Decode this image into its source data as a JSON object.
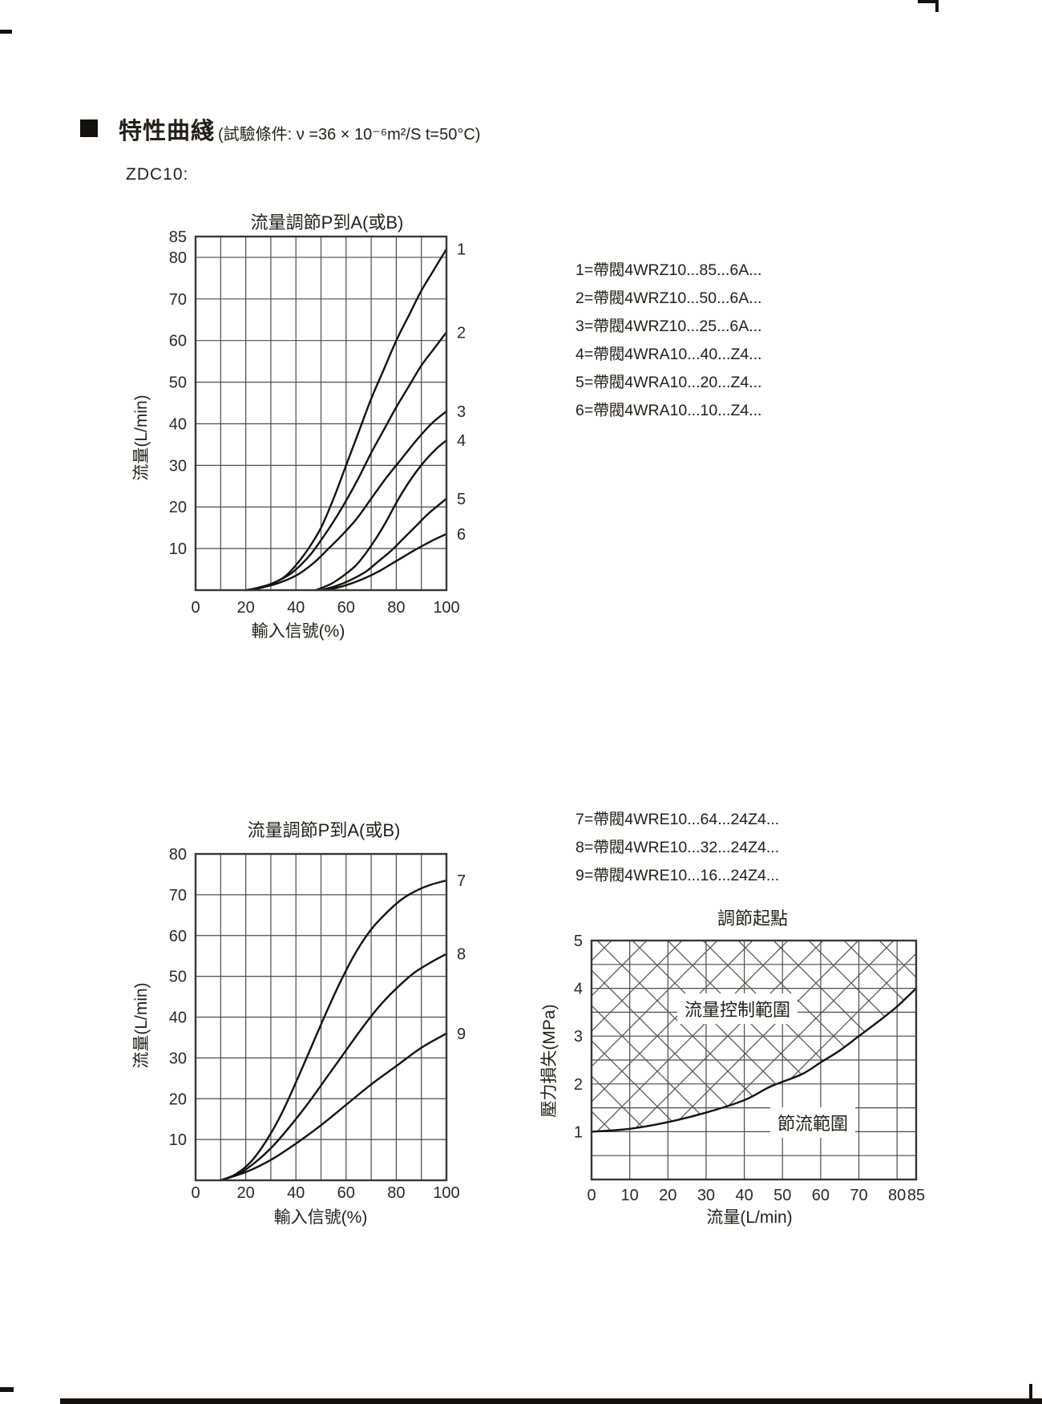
{
  "page": {
    "header": {
      "title": "特性曲綫",
      "condition": "(試驗條件: ν =36 × 10⁻⁶m²/S  t=50°C)",
      "model": "ZDC10:"
    }
  },
  "chart_data": [
    {
      "type": "line",
      "title": "流量調節P到A(或B)",
      "xlabel": "輸入信號(%)",
      "ylabel": "流量(L/min)",
      "xlim": [
        0,
        100
      ],
      "ylim": [
        0,
        85
      ],
      "x_ticks": [
        0,
        20,
        40,
        60,
        80,
        100
      ],
      "y_ticks": [
        10,
        20,
        30,
        40,
        50,
        60,
        70,
        80,
        85
      ],
      "x_grid": [
        0,
        10,
        20,
        30,
        40,
        50,
        60,
        70,
        80,
        90,
        100
      ],
      "y_grid": [
        0,
        10,
        20,
        30,
        40,
        50,
        60,
        70,
        80,
        85
      ],
      "grid": true,
      "curve_labels": true,
      "legend_position": "right-text-block",
      "legend": [
        "1=帶閥4WRZ10...85...6A...",
        "2=帶閥4WRZ10...50...6A...",
        "3=帶閥4WRZ10...25...6A...",
        "4=帶閥4WRA10...40...Z4...",
        "5=帶閥4WRA10...20...Z4...",
        "6=帶閥4WRA10...10...Z4..."
      ],
      "series": [
        {
          "name": "1",
          "points": [
            [
              20,
              0
            ],
            [
              28,
              1
            ],
            [
              35,
              3
            ],
            [
              40,
              6
            ],
            [
              45,
              10
            ],
            [
              50,
              15
            ],
            [
              55,
              22
            ],
            [
              60,
              30
            ],
            [
              65,
              38
            ],
            [
              70,
              46
            ],
            [
              75,
              53
            ],
            [
              80,
              60
            ],
            [
              85,
              66
            ],
            [
              90,
              72
            ],
            [
              95,
              77
            ],
            [
              100,
              82
            ]
          ]
        },
        {
          "name": "2",
          "points": [
            [
              21,
              0
            ],
            [
              30,
              1.5
            ],
            [
              38,
              4
            ],
            [
              45,
              8
            ],
            [
              50,
              12
            ],
            [
              55,
              16.5
            ],
            [
              60,
              21.5
            ],
            [
              65,
              27
            ],
            [
              70,
              33
            ],
            [
              75,
              38.5
            ],
            [
              80,
              44
            ],
            [
              85,
              49
            ],
            [
              90,
              54
            ],
            [
              95,
              58
            ],
            [
              100,
              62
            ]
          ]
        },
        {
          "name": "3",
          "points": [
            [
              22,
              0
            ],
            [
              32,
              1.5
            ],
            [
              40,
              3.5
            ],
            [
              47,
              6.5
            ],
            [
              53,
              10
            ],
            [
              58,
              13
            ],
            [
              64,
              17
            ],
            [
              70,
              22
            ],
            [
              76,
              27
            ],
            [
              82,
              31.5
            ],
            [
              88,
              36
            ],
            [
              94,
              40
            ],
            [
              100,
              43
            ]
          ]
        },
        {
          "name": "4",
          "points": [
            [
              48,
              0
            ],
            [
              54,
              1.5
            ],
            [
              59,
              3.5
            ],
            [
              64,
              6
            ],
            [
              68,
              9
            ],
            [
              72,
              12.5
            ],
            [
              76,
              16.5
            ],
            [
              80,
              21
            ],
            [
              84,
              25
            ],
            [
              88,
              28.5
            ],
            [
              92,
              31.5
            ],
            [
              96,
              34
            ],
            [
              100,
              36
            ]
          ]
        },
        {
          "name": "5",
          "points": [
            [
              50,
              0
            ],
            [
              56,
              1
            ],
            [
              62,
              2.5
            ],
            [
              68,
              4.5
            ],
            [
              73,
              7
            ],
            [
              78,
              9.5
            ],
            [
              83,
              12.5
            ],
            [
              88,
              15.5
            ],
            [
              93,
              18.5
            ],
            [
              100,
              22
            ]
          ]
        },
        {
          "name": "6",
          "points": [
            [
              52,
              0
            ],
            [
              59,
              1
            ],
            [
              66,
              2.5
            ],
            [
              73,
              4.5
            ],
            [
              80,
              7
            ],
            [
              87,
              9.5
            ],
            [
              94,
              11.8
            ],
            [
              100,
              13.5
            ]
          ]
        }
      ]
    },
    {
      "type": "line",
      "title": "流量調節P到A(或B)",
      "xlabel": "輸入信號(%)",
      "ylabel": "流量(L/min)",
      "xlim": [
        0,
        100
      ],
      "ylim": [
        0,
        80
      ],
      "x_ticks": [
        0,
        20,
        40,
        60,
        80,
        100
      ],
      "y_ticks": [
        10,
        20,
        30,
        40,
        50,
        60,
        70,
        80
      ],
      "x_grid": [
        0,
        10,
        20,
        30,
        40,
        50,
        60,
        70,
        80,
        90,
        100
      ],
      "y_grid": [
        0,
        10,
        20,
        30,
        40,
        50,
        60,
        70,
        80
      ],
      "grid": true,
      "curve_labels": true,
      "legend_position": "right-text-block",
      "legend": [
        "7=帶閥4WRE10...64...24Z4...",
        "8=帶閥4WRE10...32...24Z4...",
        "9=帶閥4WRE10...16...24Z4..."
      ],
      "series": [
        {
          "name": "7",
          "points": [
            [
              10,
              0
            ],
            [
              16,
              1.5
            ],
            [
              22,
              4.5
            ],
            [
              28,
              9.5
            ],
            [
              34,
              16
            ],
            [
              40,
              24
            ],
            [
              46,
              32.5
            ],
            [
              52,
              41
            ],
            [
              58,
              49
            ],
            [
              64,
              56
            ],
            [
              70,
              61.5
            ],
            [
              76,
              65.5
            ],
            [
              82,
              68.8
            ],
            [
              88,
              71
            ],
            [
              94,
              72.5
            ],
            [
              100,
              73.5
            ]
          ]
        },
        {
          "name": "8",
          "points": [
            [
              10,
              0
            ],
            [
              17,
              1.5
            ],
            [
              24,
              4.5
            ],
            [
              31,
              8.5
            ],
            [
              38,
              13.5
            ],
            [
              45,
              19
            ],
            [
              52,
              25
            ],
            [
              59,
              31
            ],
            [
              66,
              37
            ],
            [
              73,
              42.5
            ],
            [
              80,
              47
            ],
            [
              87,
              50.8
            ],
            [
              94,
              53.5
            ],
            [
              100,
              55.5
            ]
          ]
        },
        {
          "name": "9",
          "points": [
            [
              10,
              0
            ],
            [
              20,
              2
            ],
            [
              30,
              5
            ],
            [
              40,
              9
            ],
            [
              50,
              13.5
            ],
            [
              60,
              18.5
            ],
            [
              70,
              23.5
            ],
            [
              80,
              28
            ],
            [
              90,
              32.5
            ],
            [
              100,
              36
            ]
          ]
        }
      ]
    },
    {
      "type": "area",
      "title": "調節起點",
      "xlabel": "流量(L/min)",
      "ylabel": "壓力損失(MPa)",
      "xlim": [
        0,
        85
      ],
      "ylim": [
        0,
        5
      ],
      "x_ticks": [
        0,
        10,
        20,
        30,
        40,
        50,
        60,
        70,
        80,
        85
      ],
      "y_ticks": [
        1,
        2,
        3,
        4,
        5
      ],
      "x_grid": [
        0,
        10,
        20,
        30,
        40,
        50,
        60,
        70,
        80,
        85
      ],
      "y_grid": [
        0,
        0.5,
        1,
        1.5,
        2,
        2.5,
        3,
        3.5,
        4,
        4.5,
        5
      ],
      "grid": true,
      "curve_labels": false,
      "hatch": "above-curve",
      "annotations": [
        "流量控制範圍",
        "節流範圍"
      ],
      "series": [
        {
          "name": "調節起點",
          "points": [
            [
              0,
              1
            ],
            [
              10,
              1.06
            ],
            [
              20,
              1.2
            ],
            [
              30,
              1.4
            ],
            [
              40,
              1.66
            ],
            [
              47,
              1.95
            ],
            [
              55,
              2.2
            ],
            [
              60,
              2.45
            ],
            [
              65,
              2.7
            ],
            [
              70,
              3.0
            ],
            [
              75,
              3.3
            ],
            [
              80,
              3.62
            ],
            [
              85,
              4.0
            ]
          ]
        }
      ]
    }
  ]
}
